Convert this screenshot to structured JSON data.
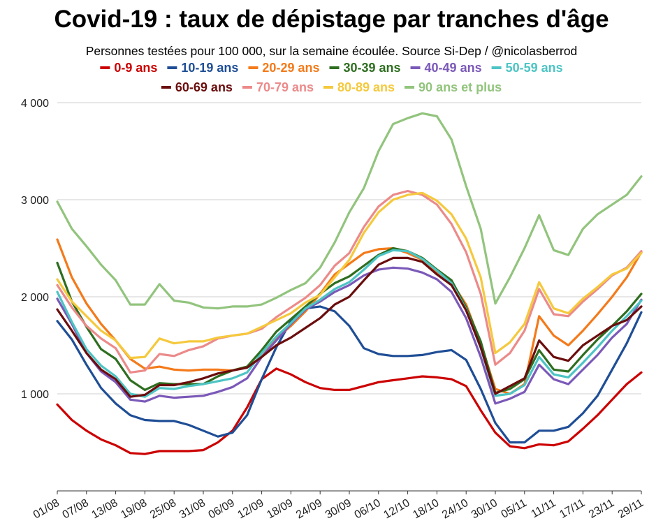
{
  "chart_data": {
    "type": "line",
    "title": "Covid-19 : taux de dépistage par tranches d'âge",
    "subtitle": "Personnes testées pour 100 000, sur la semaine écoulée. Source Si-Dep / @nicolasberrod",
    "xlabel": "",
    "ylabel": "",
    "ylim": [
      0,
      4000
    ],
    "yticks": [
      1000,
      2000,
      3000,
      4000
    ],
    "ytick_labels": [
      "1 000",
      "2 000",
      "3 000",
      "4 000"
    ],
    "grid": true,
    "legend_position": "top",
    "x": [
      "01/08",
      "04/08",
      "07/08",
      "10/08",
      "13/08",
      "16/08",
      "19/08",
      "22/08",
      "25/08",
      "28/08",
      "31/08",
      "03/09",
      "06/09",
      "09/09",
      "12/09",
      "15/09",
      "18/09",
      "21/09",
      "24/09",
      "27/09",
      "30/09",
      "03/10",
      "06/10",
      "09/10",
      "12/10",
      "15/10",
      "18/10",
      "21/10",
      "24/10",
      "27/10",
      "30/10",
      "02/11",
      "05/11",
      "08/11",
      "11/11",
      "14/11",
      "17/11",
      "20/11",
      "23/11",
      "26/11",
      "29/11"
    ],
    "xtick_labels": [
      "01/08",
      "07/08",
      "13/08",
      "19/08",
      "25/08",
      "31/08",
      "06/09",
      "12/09",
      "18/09",
      "24/09",
      "30/09",
      "06/10",
      "12/10",
      "18/10",
      "24/10",
      "30/10",
      "05/11",
      "11/11",
      "17/11",
      "23/11",
      "29/11"
    ],
    "series": [
      {
        "name": "0-9 ans",
        "color": "#cc0000",
        "values": [
          890,
          730,
          620,
          530,
          470,
          390,
          380,
          410,
          410,
          410,
          420,
          500,
          620,
          860,
          1150,
          1260,
          1200,
          1120,
          1060,
          1040,
          1040,
          1080,
          1120,
          1140,
          1160,
          1180,
          1170,
          1150,
          1080,
          830,
          600,
          460,
          440,
          480,
          470,
          510,
          640,
          780,
          940,
          1100,
          1220
        ]
      },
      {
        "name": "10-19 ans",
        "color": "#1f4e96",
        "values": [
          1750,
          1560,
          1300,
          1060,
          900,
          780,
          730,
          720,
          720,
          680,
          620,
          560,
          600,
          780,
          1150,
          1480,
          1750,
          1880,
          1900,
          1850,
          1700,
          1470,
          1410,
          1390,
          1390,
          1400,
          1430,
          1450,
          1350,
          1050,
          700,
          500,
          500,
          620,
          620,
          660,
          800,
          980,
          1250,
          1520,
          1840
        ]
      },
      {
        "name": "20-29 ans",
        "color": "#f47a1a",
        "values": [
          2590,
          2200,
          1930,
          1720,
          1550,
          1360,
          1260,
          1280,
          1250,
          1240,
          1250,
          1250,
          1240,
          1280,
          1380,
          1570,
          1700,
          1850,
          2030,
          2230,
          2340,
          2450,
          2490,
          2500,
          2450,
          2380,
          2250,
          2150,
          1920,
          1520,
          1050,
          1000,
          1100,
          1800,
          1600,
          1500,
          1650,
          1820,
          2000,
          2200,
          2460
        ]
      },
      {
        "name": "30-39 ans",
        "color": "#2e6e20",
        "values": [
          2350,
          1950,
          1690,
          1460,
          1360,
          1140,
          1040,
          1110,
          1100,
          1100,
          1100,
          1180,
          1240,
          1280,
          1450,
          1640,
          1770,
          1900,
          2030,
          2140,
          2210,
          2320,
          2430,
          2500,
          2470,
          2400,
          2280,
          2170,
          1890,
          1540,
          1010,
          1050,
          1150,
          1450,
          1250,
          1230,
          1400,
          1560,
          1700,
          1850,
          2030
        ]
      },
      {
        "name": "40-49 ans",
        "color": "#7b59b8",
        "values": [
          1980,
          1720,
          1420,
          1230,
          1120,
          940,
          920,
          980,
          960,
          970,
          980,
          1020,
          1070,
          1160,
          1380,
          1550,
          1720,
          1870,
          1950,
          2050,
          2120,
          2220,
          2280,
          2300,
          2290,
          2250,
          2180,
          2050,
          1780,
          1380,
          900,
          950,
          1020,
          1300,
          1150,
          1100,
          1250,
          1400,
          1580,
          1720,
          1970
        ]
      },
      {
        "name": "50-59 ans",
        "color": "#4dc4c4",
        "values": [
          2050,
          1740,
          1460,
          1290,
          1180,
          1000,
          970,
          1060,
          1050,
          1080,
          1100,
          1130,
          1160,
          1220,
          1420,
          1590,
          1730,
          1880,
          1970,
          2080,
          2150,
          2280,
          2420,
          2480,
          2470,
          2390,
          2270,
          2140,
          1870,
          1470,
          980,
          1000,
          1090,
          1380,
          1200,
          1170,
          1320,
          1480,
          1650,
          1800,
          1960
        ]
      },
      {
        "name": "60-69 ans",
        "color": "#6b0d0d",
        "values": [
          1870,
          1650,
          1420,
          1250,
          1150,
          970,
          990,
          1090,
          1090,
          1120,
          1160,
          1210,
          1240,
          1270,
          1380,
          1500,
          1580,
          1680,
          1780,
          1920,
          2000,
          2170,
          2330,
          2400,
          2400,
          2360,
          2230,
          2120,
          1860,
          1480,
          1000,
          1080,
          1160,
          1550,
          1380,
          1340,
          1500,
          1600,
          1700,
          1760,
          1900
        ]
      },
      {
        "name": "70-79 ans",
        "color": "#ec8a8a",
        "values": [
          2120,
          1890,
          1700,
          1570,
          1470,
          1220,
          1240,
          1410,
          1390,
          1450,
          1490,
          1570,
          1600,
          1620,
          1670,
          1790,
          1890,
          1990,
          2120,
          2320,
          2450,
          2720,
          2930,
          3050,
          3090,
          3050,
          2950,
          2750,
          2460,
          2030,
          1300,
          1420,
          1650,
          2080,
          1820,
          1800,
          1950,
          2080,
          2220,
          2300,
          2470
        ]
      },
      {
        "name": "80-89 ans",
        "color": "#f5c93d",
        "values": [
          2180,
          1950,
          1800,
          1650,
          1550,
          1370,
          1380,
          1570,
          1520,
          1540,
          1540,
          1580,
          1600,
          1620,
          1690,
          1760,
          1830,
          1940,
          2020,
          2200,
          2380,
          2660,
          2870,
          3000,
          3050,
          3070,
          2990,
          2850,
          2600,
          2200,
          1420,
          1530,
          1720,
          2150,
          1880,
          1830,
          1980,
          2100,
          2230,
          2290,
          2450
        ]
      },
      {
        "name": "90 ans et plus",
        "color": "#92c47d",
        "values": [
          2980,
          2700,
          2520,
          2330,
          2170,
          1920,
          1920,
          2130,
          1960,
          1940,
          1890,
          1880,
          1900,
          1900,
          1920,
          1990,
          2070,
          2140,
          2300,
          2560,
          2870,
          3120,
          3500,
          3780,
          3840,
          3890,
          3860,
          3620,
          3140,
          2700,
          1930,
          2200,
          2500,
          2840,
          2480,
          2430,
          2700,
          2850,
          2950,
          3050,
          3240
        ]
      }
    ]
  }
}
